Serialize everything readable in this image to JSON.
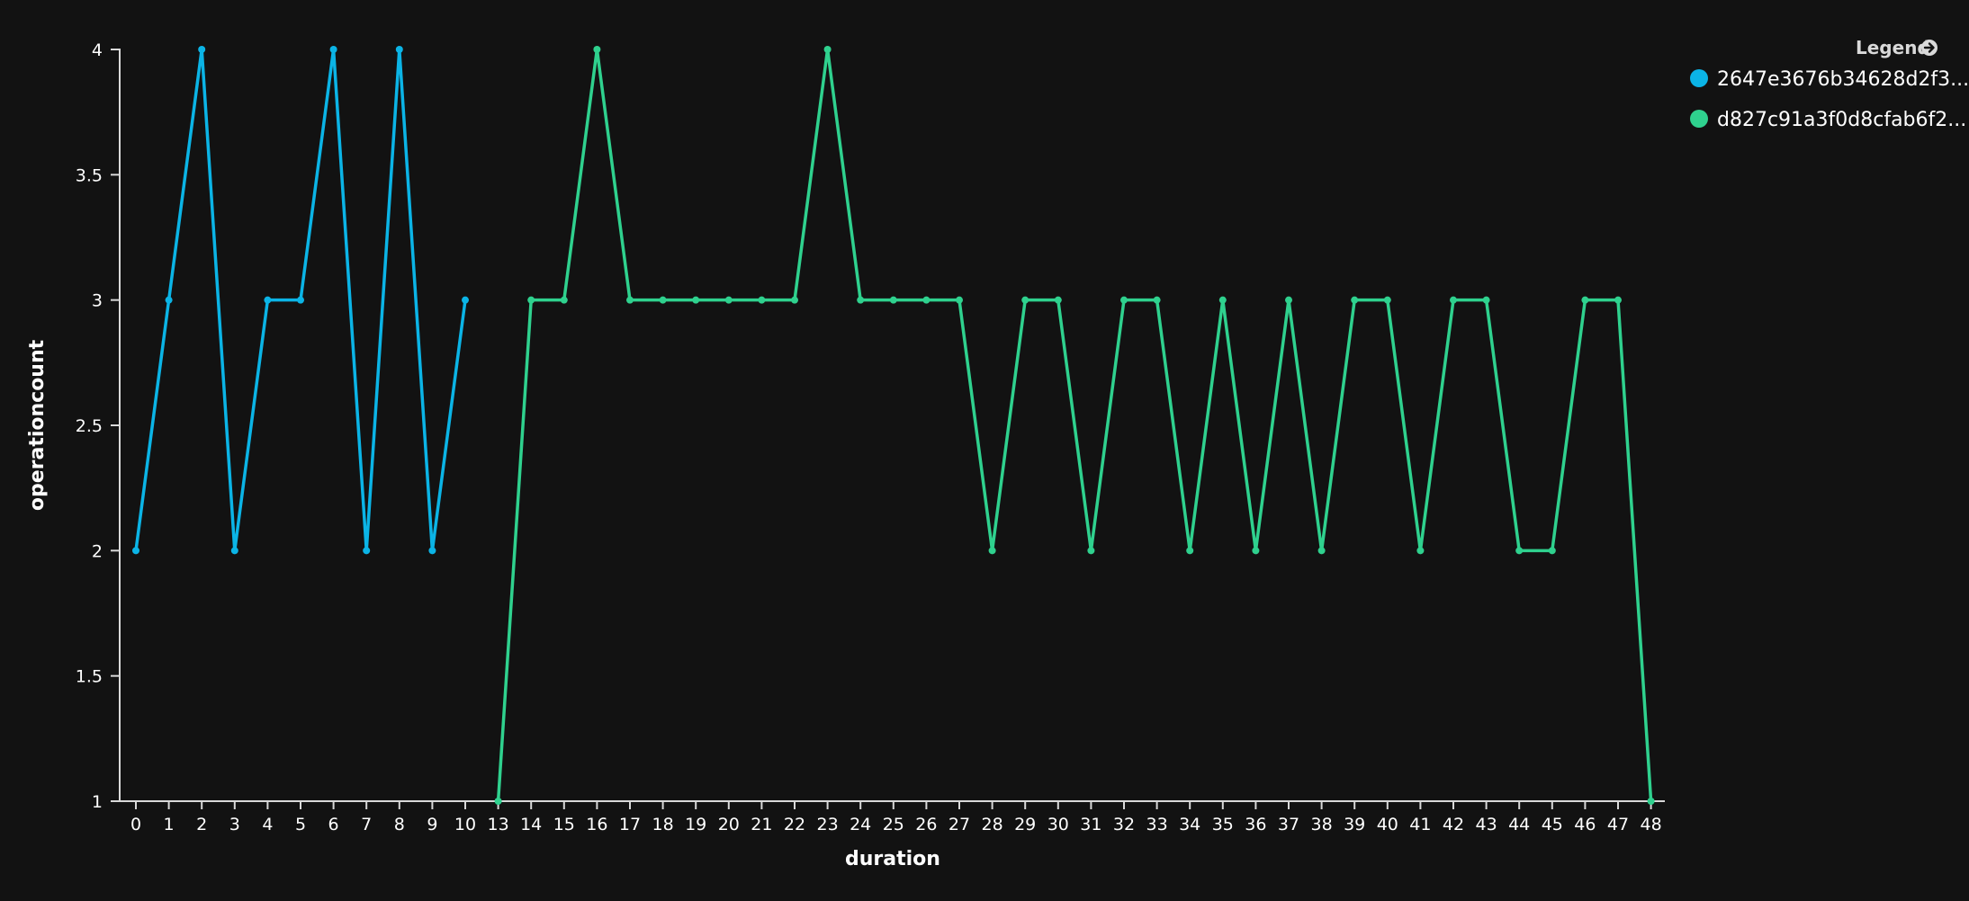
{
  "legend": {
    "title": "Legend"
  },
  "chart_data": {
    "type": "line",
    "xlabel": "duration",
    "ylabel": "operationcount",
    "categories": [
      0,
      1,
      2,
      3,
      4,
      5,
      6,
      7,
      8,
      9,
      10,
      13,
      14,
      15,
      16,
      17,
      18,
      19,
      20,
      21,
      22,
      23,
      24,
      25,
      26,
      27,
      28,
      29,
      30,
      31,
      32,
      33,
      34,
      35,
      36,
      37,
      38,
      39,
      40,
      41,
      42,
      43,
      44,
      45,
      46,
      47,
      48
    ],
    "ylim": [
      1,
      4
    ],
    "yticks": [
      1,
      1.5,
      2,
      2.5,
      3,
      3.5,
      4
    ],
    "grid": false,
    "legend_position": "top-right",
    "series": [
      {
        "name": "2647e3676b34628d2f3...",
        "color": "#0bb4e6",
        "points": [
          [
            0,
            2
          ],
          [
            1,
            3
          ],
          [
            2,
            4
          ],
          [
            3,
            2
          ],
          [
            4,
            3
          ],
          [
            5,
            3
          ],
          [
            6,
            4
          ],
          [
            7,
            2
          ],
          [
            8,
            4
          ],
          [
            9,
            2
          ],
          [
            10,
            3
          ]
        ]
      },
      {
        "name": "d827c91a3f0d8cfab6f2...",
        "color": "#2fd18e",
        "points": [
          [
            13,
            1
          ],
          [
            14,
            3
          ],
          [
            15,
            3
          ],
          [
            16,
            4
          ],
          [
            17,
            3
          ],
          [
            18,
            3
          ],
          [
            19,
            3
          ],
          [
            20,
            3
          ],
          [
            21,
            3
          ],
          [
            22,
            3
          ],
          [
            23,
            4
          ],
          [
            24,
            3
          ],
          [
            25,
            3
          ],
          [
            26,
            3
          ],
          [
            27,
            3
          ],
          [
            28,
            2
          ],
          [
            29,
            3
          ],
          [
            30,
            3
          ],
          [
            31,
            2
          ],
          [
            32,
            3
          ],
          [
            33,
            3
          ],
          [
            34,
            2
          ],
          [
            35,
            3
          ],
          [
            36,
            2
          ],
          [
            37,
            3
          ],
          [
            38,
            2
          ],
          [
            39,
            3
          ],
          [
            40,
            3
          ],
          [
            41,
            2
          ],
          [
            42,
            3
          ],
          [
            43,
            3
          ],
          [
            44,
            2
          ],
          [
            45,
            2
          ],
          [
            46,
            3
          ],
          [
            47,
            3
          ],
          [
            48,
            1
          ]
        ]
      }
    ]
  }
}
